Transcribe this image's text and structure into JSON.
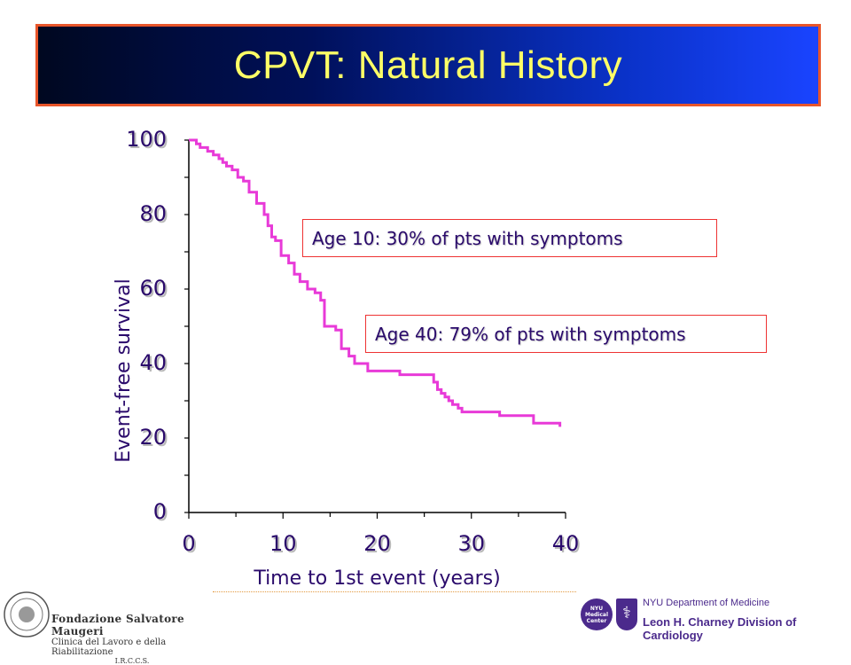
{
  "slide": {
    "title": "CPVT: Natural History",
    "annotations": [
      "Age 10: 30% of pts with symptoms",
      "Age 40: 79% of pts with symptoms"
    ]
  },
  "chart_data": {
    "type": "line",
    "title": "",
    "xlabel": "Time to 1st event (years)",
    "ylabel": "Event-free survival",
    "xlim": [
      0,
      40
    ],
    "ylim": [
      0,
      100
    ],
    "xticks": [
      "0",
      "10",
      "20",
      "30",
      "40"
    ],
    "yticks": [
      "0",
      "20",
      "40",
      "60",
      "80",
      "100"
    ],
    "grid": false,
    "series": [
      {
        "color": "#e83ad8",
        "x": [
          0,
          0.8,
          1.2,
          2.0,
          2.6,
          3.2,
          3.6,
          4.0,
          4.6,
          5.2,
          5.8,
          6.4,
          7.2,
          8.0,
          8.4,
          8.8,
          9.2,
          9.8,
          10.6,
          11.2,
          11.8,
          12.6,
          13.4,
          14.0,
          14.4,
          15.6,
          16.2,
          17.0,
          17.6,
          19.0,
          22.4,
          26.0,
          26.4,
          26.8,
          27.2,
          27.6,
          28.0,
          28.6,
          29.0,
          33.0,
          36.6,
          39.4
        ],
        "y": [
          100,
          99,
          98,
          97,
          96,
          95,
          94,
          93,
          92,
          90,
          89,
          86,
          83,
          80,
          77,
          74,
          73,
          69,
          67,
          64,
          62,
          60,
          59,
          57,
          50,
          49,
          44,
          42,
          40,
          38,
          37,
          35,
          33,
          32,
          31,
          30,
          29,
          28,
          27,
          26,
          24,
          23
        ]
      }
    ]
  },
  "footer": {
    "left_logo": {
      "line1": "Fondazione Salvatore Maugeri",
      "line2": "Clinica del Lavoro e della Riabilitazione",
      "line3": "I.R.C.C.S."
    },
    "right_logo": {
      "badge": "NYU Medical Center",
      "line1": "NYU Department of Medicine",
      "line2": "Leon H. Charney Division of Cardiology"
    }
  }
}
